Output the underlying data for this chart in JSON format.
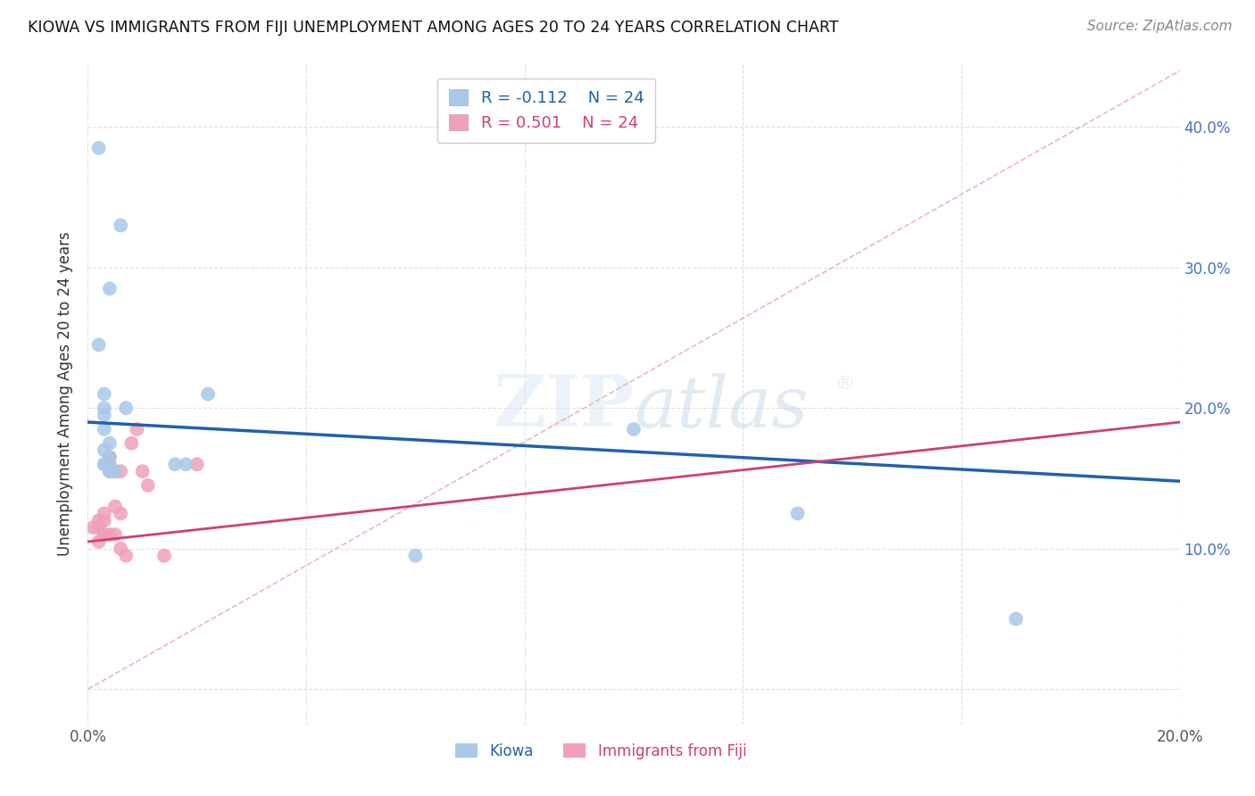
{
  "title": "KIOWA VS IMMIGRANTS FROM FIJI UNEMPLOYMENT AMONG AGES 20 TO 24 YEARS CORRELATION CHART",
  "source": "Source: ZipAtlas.com",
  "ylabel": "Unemployment Among Ages 20 to 24 years",
  "xlim": [
    0.0,
    0.2
  ],
  "ylim": [
    -0.025,
    0.445
  ],
  "kiowa_color": "#a8c8e8",
  "fiji_color": "#f0a0b8",
  "kiowa_line_color": "#2060b0",
  "fiji_line_color": "#d04070",
  "diag_line_color": "#e8b0b8",
  "legend_R_kiowa": "-0.112",
  "legend_N_kiowa": "24",
  "legend_R_fiji": "0.501",
  "legend_N_fiji": "24",
  "kiowa_x": [
    0.002,
    0.006,
    0.004,
    0.002,
    0.003,
    0.003,
    0.003,
    0.003,
    0.004,
    0.003,
    0.004,
    0.003,
    0.003,
    0.004,
    0.004,
    0.005,
    0.007,
    0.016,
    0.018,
    0.022,
    0.06,
    0.1,
    0.13,
    0.17
  ],
  "kiowa_y": [
    0.385,
    0.33,
    0.285,
    0.245,
    0.21,
    0.2,
    0.195,
    0.185,
    0.175,
    0.17,
    0.165,
    0.16,
    0.16,
    0.155,
    0.155,
    0.155,
    0.2,
    0.16,
    0.16,
    0.21,
    0.095,
    0.185,
    0.125,
    0.05
  ],
  "fiji_x": [
    0.001,
    0.002,
    0.002,
    0.002,
    0.003,
    0.003,
    0.003,
    0.003,
    0.004,
    0.004,
    0.004,
    0.005,
    0.005,
    0.005,
    0.006,
    0.006,
    0.006,
    0.007,
    0.008,
    0.009,
    0.01,
    0.011,
    0.014,
    0.02
  ],
  "fiji_y": [
    0.115,
    0.12,
    0.115,
    0.105,
    0.12,
    0.11,
    0.125,
    0.11,
    0.16,
    0.165,
    0.11,
    0.155,
    0.13,
    0.11,
    0.155,
    0.125,
    0.1,
    0.095,
    0.175,
    0.185,
    0.155,
    0.145,
    0.095,
    0.16
  ],
  "kiowa_line_start_y": 0.19,
  "kiowa_line_end_y": 0.148,
  "fiji_line_start_y": 0.105,
  "fiji_line_end_y": 0.19,
  "watermark_text": "ZIPatlas",
  "background_color": "#ffffff",
  "grid_color": "#e0e0e0"
}
